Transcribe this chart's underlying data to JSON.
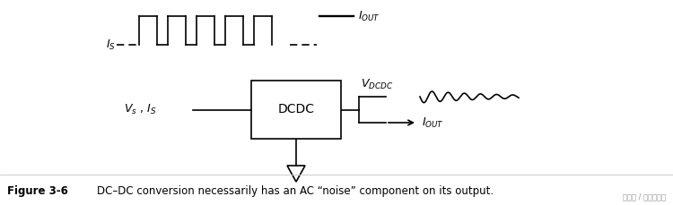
{
  "bg_color": "#ffffff",
  "box_label": "DCDC",
  "figure_label": "Figure 3-6",
  "caption": "DC–DC conversion necessarily has an AC “noise” component on its output.",
  "watermark": "头条号 / 万物云学网",
  "lw": 1.2
}
